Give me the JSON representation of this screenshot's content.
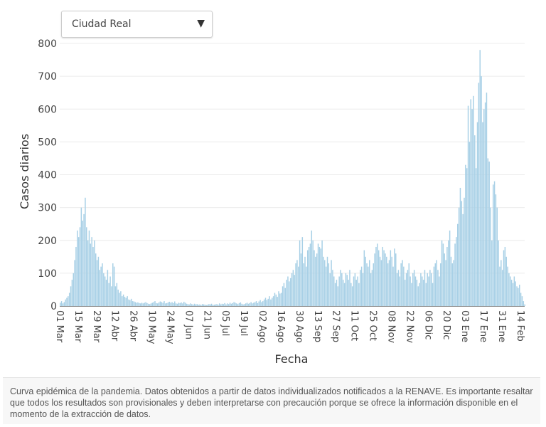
{
  "selector": {
    "value": "Ciudad Real",
    "icon": "caret-down-icon"
  },
  "caption": "Curva epidémica de la pandemia. Datos obtenidos a partir de datos individualizados notificados a la RENAVE. Es importante resaltar que todos los resultados son provisionales y deben interpretarse con precaución porque se ofrece la información disponible en el momento de la extracción de datos.",
  "chart_data": {
    "type": "bar",
    "title": "",
    "xlabel": "Fecha",
    "ylabel": "Casos diarios",
    "ylim": [
      0,
      800
    ],
    "yticks": [
      0,
      100,
      200,
      300,
      400,
      500,
      600,
      700,
      800
    ],
    "xtick_labels": [
      "01 Mar",
      "15 Mar",
      "29 Mar",
      "12 Abr",
      "26 Abr",
      "10 May",
      "24 May",
      "07 Jun",
      "21 Jun",
      "05 Jul",
      "19 Jul",
      "02 Ago",
      "16 Ago",
      "30 Ago",
      "13 Sep",
      "27 Sep",
      "11 Oct",
      "25 Oct",
      "08 Nov",
      "22 Nov",
      "06 Dic",
      "20 Dic",
      "03 Ene",
      "17 Ene",
      "31 Ene",
      "14 Feb"
    ],
    "grid": true,
    "bar_color": "#a8d0e6",
    "values": [
      10,
      15,
      8,
      12,
      20,
      25,
      30,
      40,
      60,
      80,
      100,
      140,
      180,
      230,
      210,
      240,
      300,
      260,
      280,
      330,
      240,
      200,
      230,
      190,
      210,
      180,
      200,
      160,
      140,
      150,
      110,
      120,
      130,
      100,
      90,
      80,
      110,
      70,
      90,
      60,
      130,
      120,
      60,
      70,
      50,
      40,
      45,
      30,
      35,
      28,
      25,
      30,
      20,
      18,
      22,
      15,
      14,
      12,
      10,
      11,
      9,
      8,
      10,
      8,
      10,
      12,
      9,
      7,
      6,
      8,
      10,
      12,
      15,
      9,
      8,
      11,
      14,
      12,
      10,
      15,
      8,
      9,
      11,
      13,
      10,
      12,
      9,
      14,
      8,
      7,
      10,
      9,
      11,
      8,
      13,
      10,
      7,
      6,
      5,
      8,
      6,
      4,
      7,
      5,
      6,
      4,
      5,
      3,
      6,
      5,
      4,
      3,
      4,
      6,
      5,
      7,
      3,
      4,
      5,
      6,
      4,
      8,
      5,
      7,
      6,
      9,
      5,
      8,
      6,
      10,
      7,
      9,
      12,
      10,
      8,
      6,
      9,
      11,
      7,
      5,
      6,
      8,
      10,
      7,
      9,
      12,
      8,
      10,
      12,
      15,
      9,
      14,
      18,
      12,
      15,
      20,
      25,
      18,
      22,
      30,
      20,
      25,
      30,
      40,
      35,
      28,
      45,
      38,
      40,
      60,
      70,
      55,
      80,
      90,
      75,
      85,
      100,
      110,
      95,
      130,
      140,
      120,
      200,
      160,
      210,
      130,
      150,
      120,
      170,
      180,
      190,
      230,
      200,
      170,
      150,
      160,
      190,
      180,
      175,
      200,
      150,
      140,
      120,
      150,
      130,
      100,
      140,
      110,
      90,
      70,
      80,
      60,
      90,
      110,
      100,
      80,
      70,
      100,
      95,
      80,
      110,
      70,
      60,
      90,
      100,
      80,
      90,
      70,
      110,
      120,
      100,
      170,
      150,
      130,
      120,
      140,
      100,
      110,
      130,
      160,
      180,
      190,
      170,
      150,
      140,
      180,
      170,
      160,
      150,
      130,
      140,
      170,
      150,
      120,
      175,
      160,
      100,
      110,
      90,
      130,
      140,
      120,
      80,
      100,
      110,
      130,
      90,
      70,
      100,
      110,
      90,
      80,
      60,
      70,
      100,
      90,
      80,
      110,
      70,
      100,
      90,
      110,
      100,
      70,
      120,
      130,
      140,
      110,
      90,
      130,
      200,
      190,
      160,
      140,
      180,
      200,
      230,
      150,
      130,
      140,
      190,
      210,
      250,
      300,
      360,
      320,
      280,
      330,
      430,
      420,
      610,
      500,
      630,
      600,
      640,
      520,
      420,
      560,
      680,
      780,
      700,
      560,
      600,
      620,
      650,
      450,
      440,
      300,
      200,
      370,
      380,
      340,
      300,
      200,
      120,
      140,
      110,
      170,
      180,
      150,
      120,
      100,
      90,
      80,
      70,
      90,
      75,
      60,
      55,
      65,
      40,
      30,
      15,
      5
    ]
  }
}
